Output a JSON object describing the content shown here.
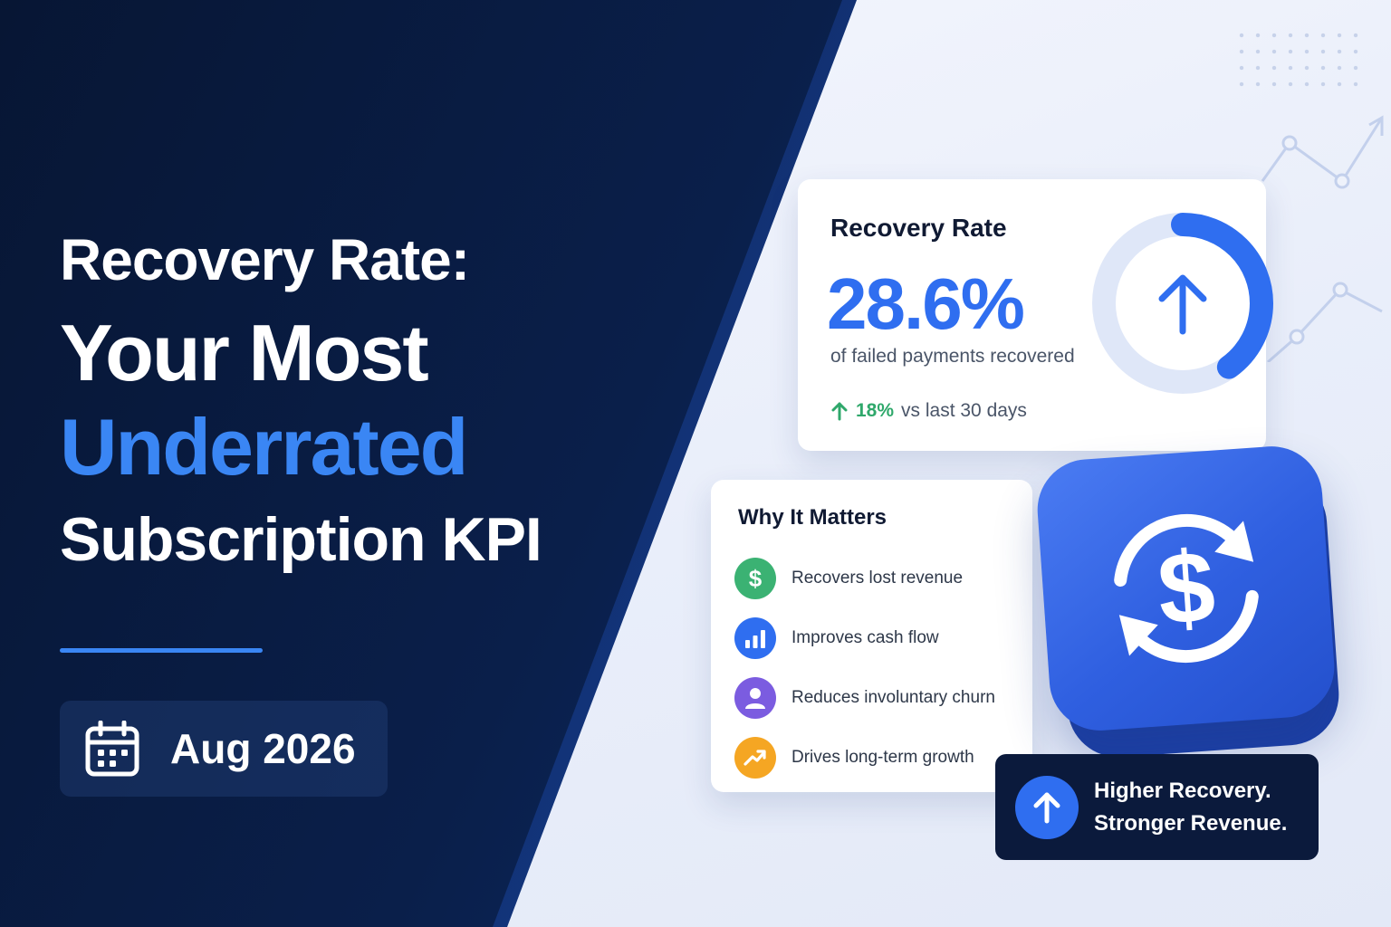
{
  "headline": {
    "line1": "Recovery Rate:",
    "line2": "Your Most",
    "line3": "Underrated",
    "line4": "Subscription KPI",
    "accent_color": "#3a86f4"
  },
  "date": {
    "icon": "calendar-icon",
    "text": "Aug 2026"
  },
  "recovery_card": {
    "title": "Recovery Rate",
    "value": "28.6%",
    "subtitle": "of failed payments recovered",
    "change_icon": "arrow-up-icon",
    "change_value": "18%",
    "change_label": "vs last 30 days",
    "gauge_icon": "arrow-up-icon",
    "accent_color": "#2f6ef0",
    "positive_color": "#2fa86b"
  },
  "why_card": {
    "title": "Why It Matters",
    "items": [
      {
        "label": "Recovers lost revenue",
        "icon": "dollar-icon",
        "color": "#3bb273"
      },
      {
        "label": "Improves cash flow",
        "icon": "bar-chart-icon",
        "color": "#2f6ef0"
      },
      {
        "label": "Reduces involuntary churn",
        "icon": "user-icon",
        "color": "#7b5ce0"
      },
      {
        "label": "Drives long-term growth",
        "icon": "trend-up-icon",
        "color": "#f5a623"
      }
    ]
  },
  "feature_icon": "dollar-cycle-icon",
  "badge": {
    "icon": "arrow-up-icon",
    "line1": "Higher Recovery.",
    "line2": "Stronger Revenue."
  }
}
